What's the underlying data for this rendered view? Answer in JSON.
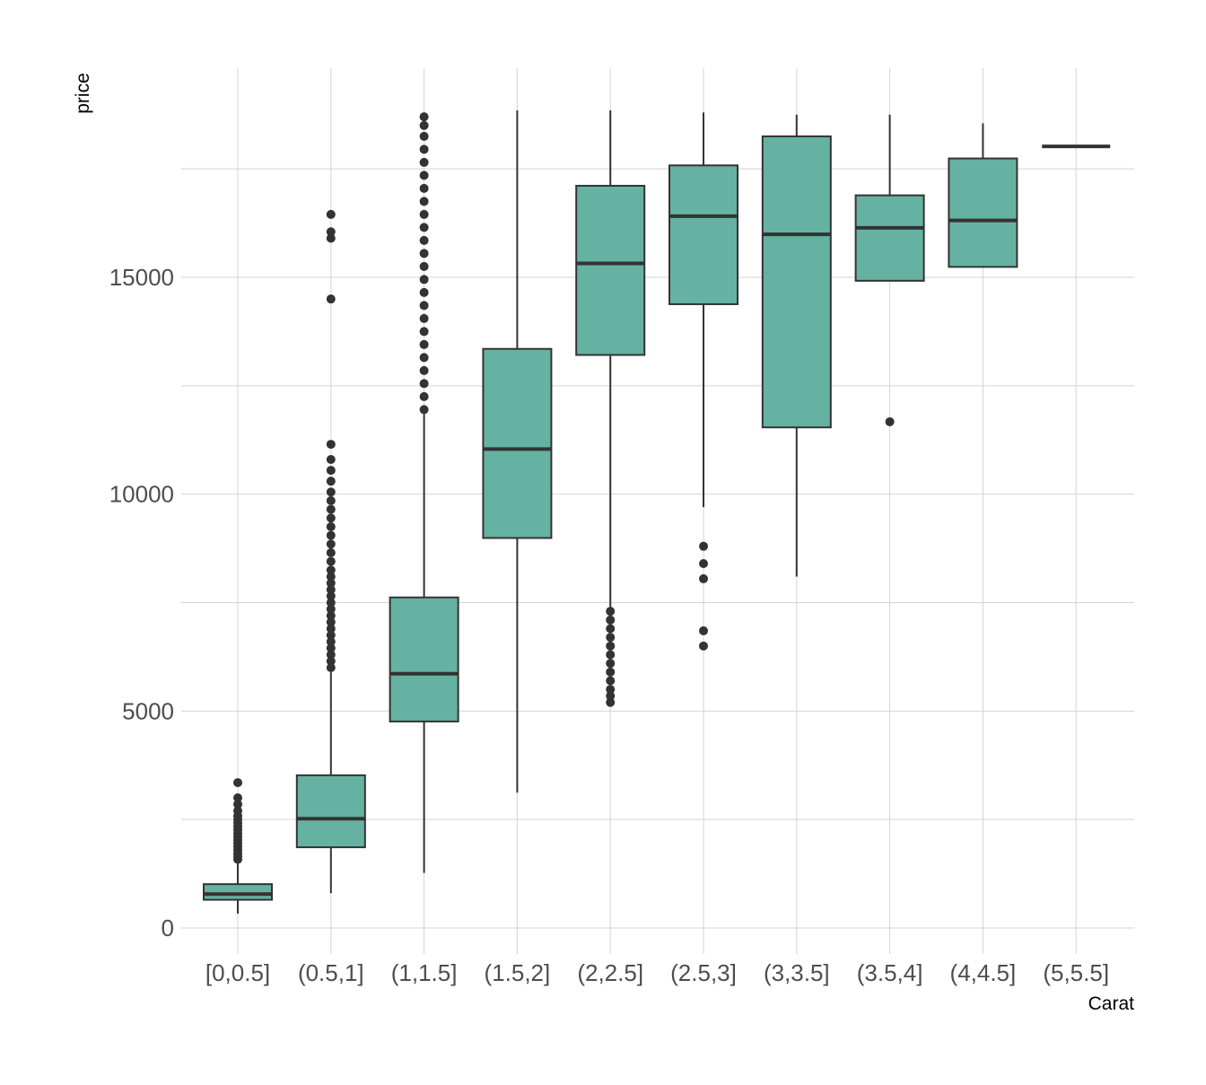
{
  "chart_data": {
    "type": "box",
    "title": "",
    "xlabel": "Carat",
    "ylabel": "price",
    "ylim": [
      -600,
      19500
    ],
    "yticks": [
      0,
      5000,
      10000,
      15000
    ],
    "y_tick_labels": [
      "0",
      "5000",
      "10000",
      "15000"
    ],
    "grid": true,
    "colors": {
      "box_fill": "#66b2a2",
      "box_line": "#333333",
      "grid": "#d4d4d4"
    },
    "categories": [
      "[0,0.5]",
      "(0.5,1]",
      "(1,1.5]",
      "(1.5,2]",
      "(2,2.5]",
      "(2.5,3]",
      "(3,3.5]",
      "(3.5,4]",
      "(4,4.5]",
      "(5,5.5]"
    ],
    "series": [
      {
        "category": "[0,0.5]",
        "whisker_low": 330,
        "q1": 650,
        "median": 780,
        "q3": 1010,
        "whisker_high": 1550,
        "outliers": [
          1580,
          1650,
          1720,
          1800,
          1880,
          1950,
          2030,
          2100,
          2180,
          2260,
          2340,
          2420,
          2500,
          2580,
          2700,
          2850,
          3000,
          3350
        ]
      },
      {
        "category": "(0.5,1]",
        "whisker_low": 800,
        "q1": 1860,
        "median": 2520,
        "q3": 3520,
        "whisker_high": 5900,
        "outliers": [
          6000,
          6150,
          6300,
          6450,
          6600,
          6750,
          6900,
          7050,
          7200,
          7350,
          7500,
          7650,
          7800,
          7950,
          8100,
          8250,
          8450,
          8650,
          8850,
          9050,
          9250,
          9450,
          9650,
          9850,
          10050,
          10300,
          10550,
          10800,
          11150,
          14500,
          15900,
          16050,
          16450
        ]
      },
      {
        "category": "(1,1.5]",
        "whisker_low": 1270,
        "q1": 4760,
        "median": 5860,
        "q3": 7620,
        "whisker_high": 11850,
        "outliers": [
          11950,
          12250,
          12550,
          12850,
          13150,
          13450,
          13750,
          14050,
          14350,
          14650,
          14950,
          15250,
          15550,
          15850,
          16150,
          16450,
          16750,
          17050,
          17350,
          17650,
          17950,
          18250,
          18500,
          18700
        ]
      },
      {
        "category": "(1.5,2]",
        "whisker_low": 3120,
        "q1": 8990,
        "median": 11040,
        "q3": 13350,
        "whisker_high": 18850,
        "outliers": []
      },
      {
        "category": "(2,2.5]",
        "whisker_low": 7400,
        "q1": 13210,
        "median": 15320,
        "q3": 17110,
        "whisker_high": 18850,
        "outliers": [
          5200,
          5350,
          5500,
          5700,
          5900,
          6100,
          6300,
          6500,
          6700,
          6900,
          7100,
          7300
        ]
      },
      {
        "category": "(2.5,3]",
        "whisker_low": 9700,
        "q1": 14380,
        "median": 16410,
        "q3": 17580,
        "whisker_high": 18800,
        "outliers": [
          6500,
          6850,
          8050,
          8400,
          8800
        ]
      },
      {
        "category": "(3,3.5]",
        "whisker_low": 8100,
        "q1": 11540,
        "median": 15990,
        "q3": 18250,
        "whisker_high": 18750,
        "outliers": []
      },
      {
        "category": "(3.5,4]",
        "whisker_low": 14920,
        "q1": 14920,
        "median": 16140,
        "q3": 16890,
        "whisker_high": 18750,
        "outliers": [
          11670
        ]
      },
      {
        "category": "(4,4.5]",
        "whisker_low": 15240,
        "q1": 15240,
        "median": 16310,
        "q3": 17740,
        "whisker_high": 18550,
        "outliers": []
      },
      {
        "category": "(5,5.5]",
        "whisker_low": 18018,
        "q1": 18018,
        "median": 18018,
        "q3": 18018,
        "whisker_high": 18018,
        "outliers": []
      }
    ]
  }
}
